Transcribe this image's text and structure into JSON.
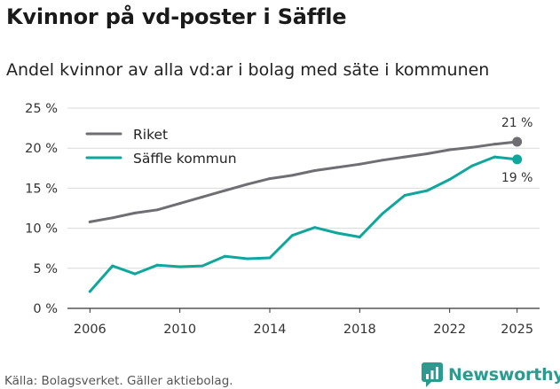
{
  "header": {
    "title": "Kvinnor på vd-poster i Säffle",
    "subtitle": "Andel kvinnor av alla vd:ar i bolag med säte i kommunen"
  },
  "footer": {
    "source": "Källa: Bolagsverket. Gäller aktiebolag.",
    "brand": "Newsworthy",
    "brand_color": "#2b9b8f"
  },
  "chart_data": {
    "type": "line",
    "title": "Kvinnor på vd-poster i Säffle",
    "subtitle": "Andel kvinnor av alla vd:ar i bolag med säte i kommunen",
    "xlabel": "",
    "ylabel": "",
    "x": [
      2006,
      2007,
      2008,
      2009,
      2010,
      2011,
      2012,
      2013,
      2014,
      2015,
      2016,
      2017,
      2018,
      2019,
      2020,
      2021,
      2022,
      2023,
      2024,
      2025
    ],
    "xlim": [
      2005,
      2026
    ],
    "ylim": [
      0,
      25
    ],
    "x_ticks": [
      2006,
      2010,
      2014,
      2018,
      2022,
      2025
    ],
    "x_tick_labels": [
      "2006",
      "2010",
      "2014",
      "2018",
      "2022",
      "2025"
    ],
    "y_ticks": [
      0,
      5,
      10,
      15,
      20,
      25
    ],
    "y_tick_labels": [
      "0 %",
      "5 %",
      "10 %",
      "15 %",
      "20 %",
      "25 %"
    ],
    "grid": true,
    "legend_position": "top-left",
    "series": [
      {
        "name": "Riket",
        "color": "#6e6e73",
        "values": [
          10.8,
          11.3,
          11.9,
          12.3,
          13.1,
          13.9,
          14.7,
          15.5,
          16.2,
          16.6,
          17.2,
          17.6,
          18.0,
          18.5,
          18.9,
          19.3,
          19.8,
          20.1,
          20.5,
          20.8
        ],
        "end_label": "21 %"
      },
      {
        "name": "Säffle kommun",
        "color": "#0fa69b",
        "values": [
          2.1,
          5.3,
          4.3,
          5.4,
          5.2,
          5.3,
          6.5,
          6.2,
          6.3,
          9.1,
          10.1,
          9.4,
          8.9,
          11.8,
          14.1,
          14.7,
          16.1,
          17.8,
          18.9,
          18.6
        ],
        "end_label": "19 %"
      }
    ]
  }
}
